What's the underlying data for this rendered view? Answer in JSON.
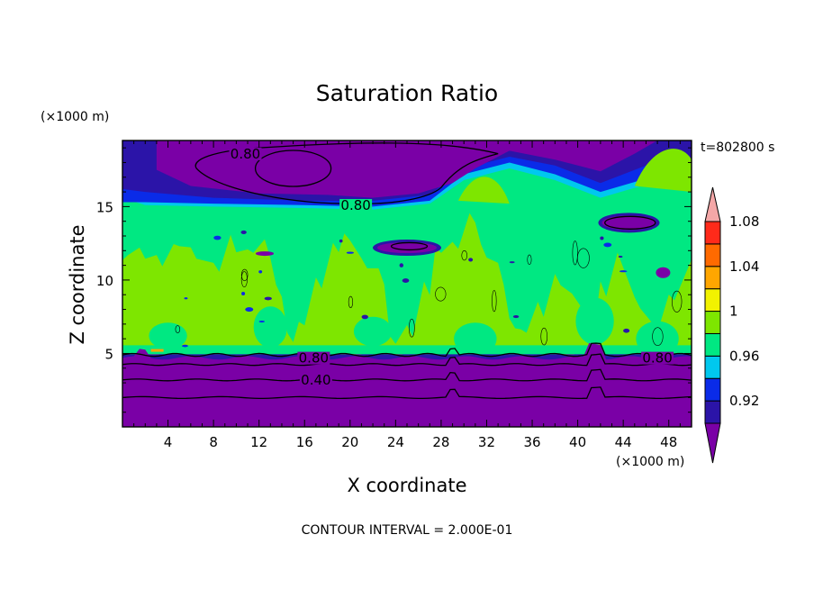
{
  "chart_data": {
    "type": "heatmap",
    "title": "Saturation Ratio",
    "xlabel": "X coordinate",
    "ylabel": "Z coordinate",
    "x_unit": "(×1000 m)",
    "y_unit": "(×1000 m)",
    "time_label": "t=802800 s",
    "footer": "CONTOUR INTERVAL = 2.000E-01",
    "xlim": [
      0,
      50
    ],
    "ylim": [
      0,
      19.5
    ],
    "xticks": [
      4,
      8,
      12,
      16,
      20,
      24,
      28,
      32,
      36,
      40,
      44,
      48
    ],
    "yticks": [
      5,
      10,
      15
    ],
    "colorbar": {
      "labels": [
        "1.08",
        "1.04",
        "1",
        "0.96",
        "0.92"
      ],
      "label_values": [
        1.08,
        1.04,
        1.0,
        0.96,
        0.92
      ],
      "colors": [
        "#7a00a6",
        "#2b14a8",
        "#0a2be8",
        "#00c8ee",
        "#00e882",
        "#7ee600",
        "#f2f200",
        "#ffa600",
        "#ff6a00",
        "#ff2a1a",
        "#f4a7a7"
      ],
      "bounds": [
        0.9,
        0.92,
        0.94,
        0.96,
        0.98,
        1.0,
        1.02,
        1.04,
        1.06,
        1.08,
        1.1
      ]
    },
    "contour_labels": [
      {
        "text": "0.80",
        "x": 10.8,
        "y": 18.4
      },
      {
        "text": "0.80",
        "x": 20.5,
        "y": 14.9
      },
      {
        "text": "0.80",
        "x": 16.8,
        "y": 4.5
      },
      {
        "text": "0.40",
        "x": 17.0,
        "y": 3.0
      },
      {
        "text": "0.80",
        "x": 47.0,
        "y": 4.5
      }
    ],
    "regions": {
      "bottom_dry_layer_top": 4.7,
      "upper_dry_band": [
        15.3,
        19.5
      ],
      "low_contours": [
        0.4,
        0.6,
        0.8
      ]
    }
  }
}
